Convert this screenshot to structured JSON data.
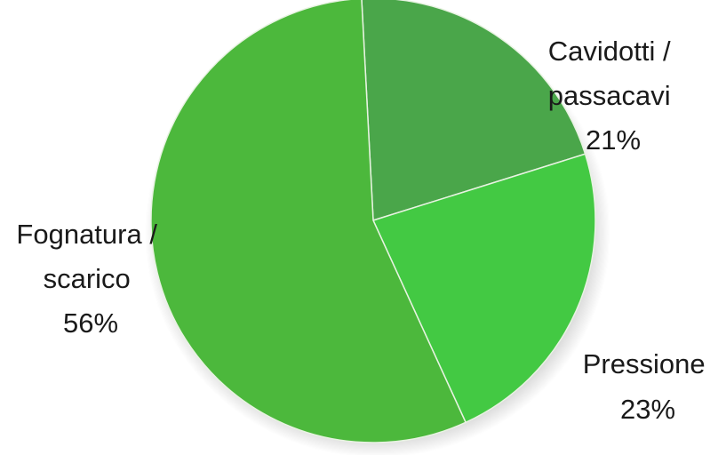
{
  "chart_data": {
    "type": "pie",
    "title": "",
    "slices": [
      {
        "label_lines": [
          "Cavidotti /",
          "passacavi"
        ],
        "percent_label": "21%",
        "value": 21,
        "color": "#4aa64a"
      },
      {
        "label_lines": [
          "Pressione"
        ],
        "percent_label": "23%",
        "value": 23,
        "color": "#43c943"
      },
      {
        "label_lines": [
          "Fognatura /",
          "scarico"
        ],
        "percent_label": "56%",
        "value": 56,
        "color": "#4cb83c"
      }
    ],
    "start_angle_deg": -3,
    "direction": "clockwise",
    "legend": "none",
    "labels_outside": true
  }
}
